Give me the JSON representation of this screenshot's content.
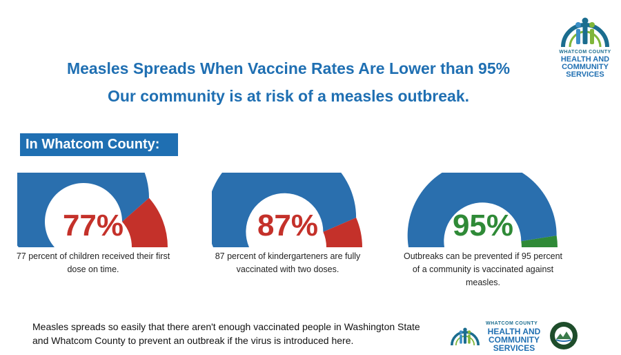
{
  "header": {
    "headline": "Measles Spreads When Vaccine Rates Are Lower than 95%",
    "subheadline": "Our community is at risk of a measles outbreak."
  },
  "logo": {
    "org_small": "WHATCOM COUNTY",
    "org_line_a": "HEALTH AND",
    "org_line_b": "COMMUNITY",
    "org_line_c": "SERVICES"
  },
  "section_label": "In Whatcom County:",
  "colors": {
    "blue": "#2a6fae",
    "red": "#c4312a",
    "green": "#2f8a37",
    "headline": "#1f6fb2"
  },
  "gauges": [
    {
      "percent_label": "77%",
      "value": 77,
      "remainder_color": "#c4312a",
      "caption": "77 percent of children received their first dose on time."
    },
    {
      "percent_label": "87%",
      "value": 87,
      "remainder_color": "#c4312a",
      "caption": "87 percent of kindergarteners are fully vaccinated with two doses."
    },
    {
      "percent_label": "95%",
      "value": 95,
      "remainder_color": "#2f8a37",
      "caption": "Outbreaks can be prevented if 95 percent of a community is vaccinated against measles."
    }
  ],
  "footer": {
    "text": "Measles spreads so easily that there aren't enough vaccinated people in Washington State and Whatcom County to prevent an outbreak if the virus is introduced here."
  }
}
